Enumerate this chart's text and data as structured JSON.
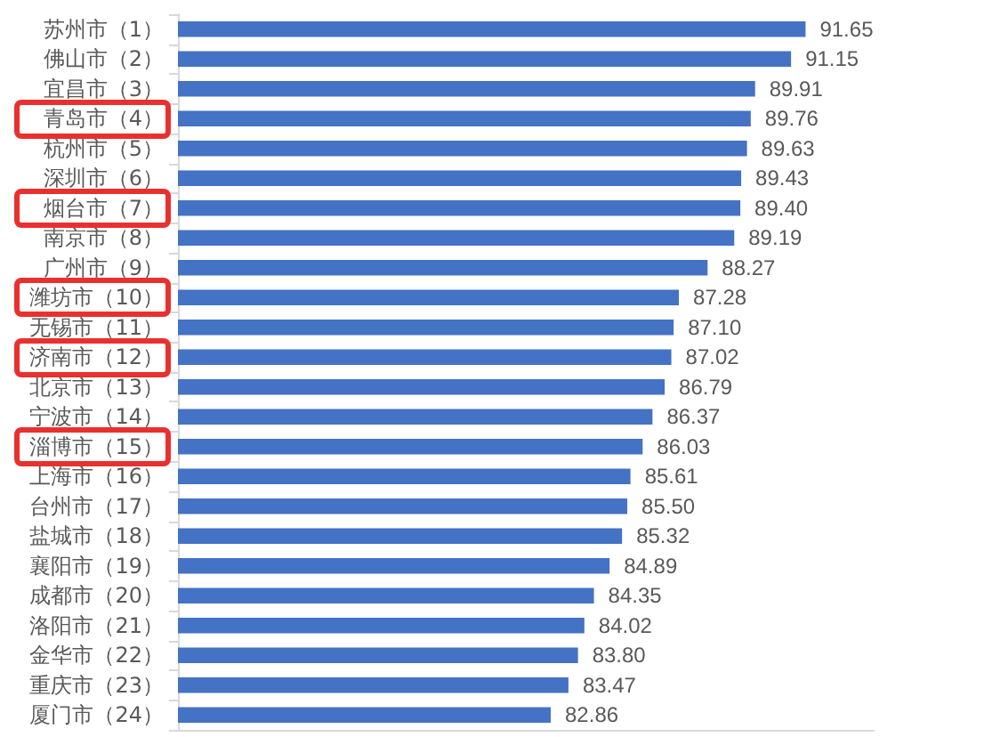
{
  "chart_data": {
    "type": "bar",
    "orientation": "horizontal",
    "categories": [
      "苏州市（1）",
      "佛山市（2）",
      "宜昌市（3）",
      "青岛市（4）",
      "杭州市（5）",
      "深圳市（6）",
      "烟台市（7）",
      "南京市（8）",
      "广州市（9）",
      "潍坊市（10）",
      "无锡市（11）",
      "济南市（12）",
      "北京市（13）",
      "宁波市（14）",
      "淄博市（15）",
      "上海市（16）",
      "台州市（17）",
      "盐城市（18）",
      "襄阳市（19）",
      "成都市（20）",
      "洛阳市（21）",
      "金华市（22）",
      "重庆市（23）",
      "厦门市（24）"
    ],
    "values": [
      91.65,
      91.15,
      89.91,
      89.76,
      89.63,
      89.43,
      89.4,
      89.19,
      88.27,
      87.28,
      87.1,
      87.02,
      86.79,
      86.37,
      86.03,
      85.61,
      85.5,
      85.32,
      84.89,
      84.35,
      84.02,
      83.8,
      83.47,
      82.86
    ],
    "value_labels": [
      "91.65",
      "91.15",
      "89.91",
      "89.76",
      "89.63",
      "89.43",
      "89.40",
      "89.19",
      "88.27",
      "87.28",
      "87.10",
      "87.02",
      "86.79",
      "86.37",
      "86.03",
      "85.61",
      "85.50",
      "85.32",
      "84.89",
      "84.35",
      "84.02",
      "83.80",
      "83.47",
      "82.86"
    ],
    "color": "#4472c4",
    "xlim": [
      70,
      94
    ],
    "tick_labels": "y"
  }
}
